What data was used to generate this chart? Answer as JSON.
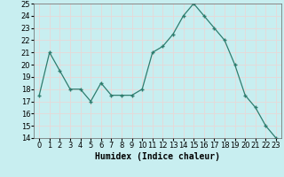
{
  "x": [
    0,
    1,
    2,
    3,
    4,
    5,
    6,
    7,
    8,
    9,
    10,
    11,
    12,
    13,
    14,
    15,
    16,
    17,
    18,
    19,
    20,
    21,
    22,
    23
  ],
  "y": [
    17.5,
    21.0,
    19.5,
    18.0,
    18.0,
    17.0,
    18.5,
    17.5,
    17.5,
    17.5,
    18.0,
    21.0,
    21.5,
    22.5,
    24.0,
    25.0,
    24.0,
    23.0,
    22.0,
    20.0,
    17.5,
    16.5,
    15.0,
    14.0
  ],
  "xlabel": "Humidex (Indice chaleur)",
  "ylim": [
    14,
    25
  ],
  "xlim": [
    -0.5,
    23.5
  ],
  "yticks": [
    14,
    15,
    16,
    17,
    18,
    19,
    20,
    21,
    22,
    23,
    24,
    25
  ],
  "xticks": [
    0,
    1,
    2,
    3,
    4,
    5,
    6,
    7,
    8,
    9,
    10,
    11,
    12,
    13,
    14,
    15,
    16,
    17,
    18,
    19,
    20,
    21,
    22,
    23
  ],
  "line_color": "#2e7d6e",
  "marker": "+",
  "bg_color": "#c8eef0",
  "grid_color": "#e8d8d8",
  "label_fontsize": 7,
  "tick_fontsize": 6
}
